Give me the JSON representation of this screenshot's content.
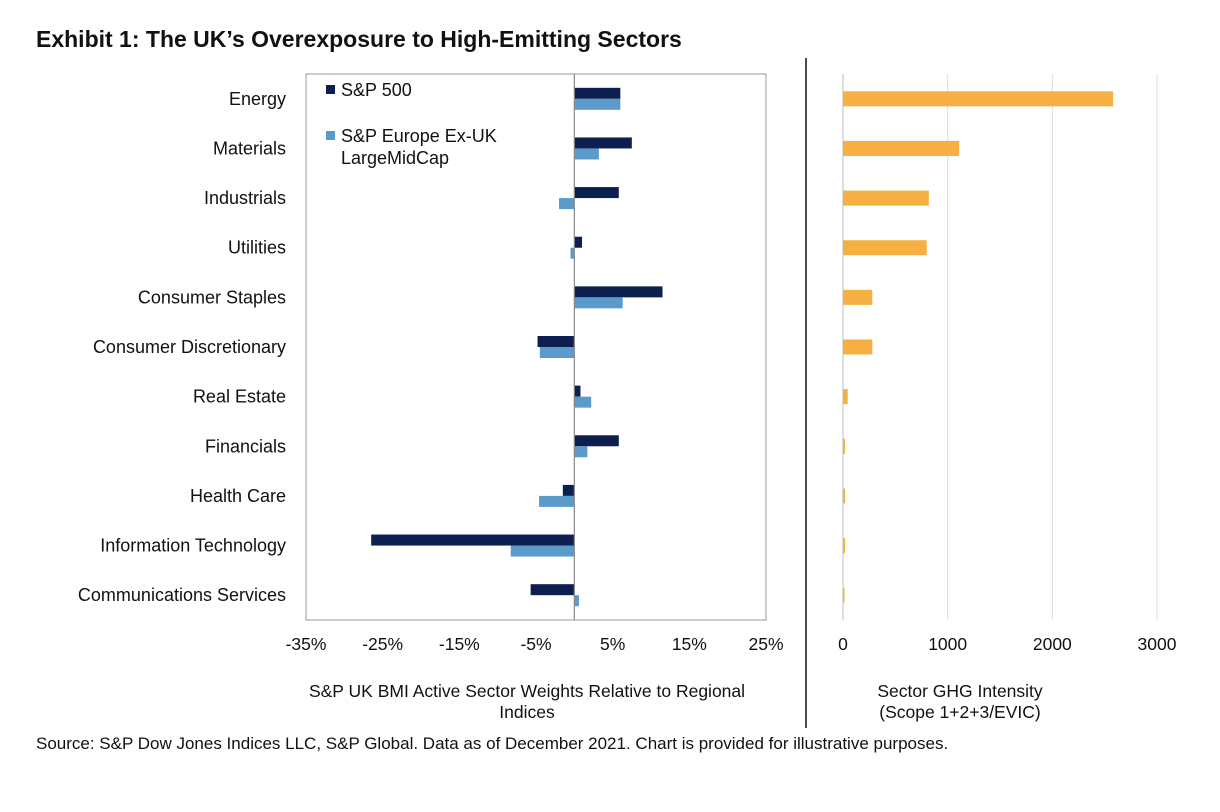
{
  "title": "Exhibit 1: The UK’s Overexposure to High-Emitting Sectors",
  "source": "Source: S&P Dow Jones Indices LLC, S&P Global. Data as of December 2021. Chart is provided for illustrative purposes.",
  "colors": {
    "sp500": "#0d1f4e",
    "europe": "#5b9bcb",
    "ghg": "#f5b041",
    "grid": "#dcdcdc",
    "axis": "#999999",
    "divider": "#111111"
  },
  "chart_data": [
    {
      "type": "bar",
      "orientation": "horizontal",
      "categories": [
        "Energy",
        "Materials",
        "Industrials",
        "Utilities",
        "Consumer Staples",
        "Consumer Discretionary",
        "Real Estate",
        "Financials",
        "Health Care",
        "Information Technology",
        "Communications Services"
      ],
      "series": [
        {
          "name": "S&P 500",
          "values": [
            6,
            7.5,
            5.8,
            1,
            11.5,
            -4.8,
            0.8,
            5.8,
            -1.5,
            -26.5,
            -5.7
          ]
        },
        {
          "name": "S&P Europe Ex-UK LargeMidCap",
          "values": [
            6,
            3.2,
            -2,
            -0.5,
            6.3,
            -4.5,
            2.2,
            1.7,
            -4.6,
            -8.3,
            0.6
          ]
        }
      ],
      "xlim": [
        -35,
        25
      ],
      "xticks": [
        "-35%",
        "-25%",
        "-15%",
        "-5%",
        "5%",
        "15%",
        "25%"
      ],
      "xlabel": "S&P UK BMI Active Sector Weights Relative to Regional Indices",
      "grid": true,
      "legend": "top-left"
    },
    {
      "type": "bar",
      "orientation": "horizontal",
      "categories": [
        "Energy",
        "Materials",
        "Industrials",
        "Utilities",
        "Consumer Staples",
        "Consumer Discretionary",
        "Real Estate",
        "Financials",
        "Health Care",
        "Information Technology",
        "Communications Services"
      ],
      "values": [
        2580,
        1110,
        820,
        800,
        280,
        280,
        45,
        20,
        20,
        20,
        10
      ],
      "xlim": [
        0,
        3000
      ],
      "xticks": [
        "0",
        "1000",
        "2000",
        "3000"
      ],
      "xlabel": "Sector GHG Intensity\n(Scope 1+2+3/EVIC)",
      "grid": true
    }
  ]
}
